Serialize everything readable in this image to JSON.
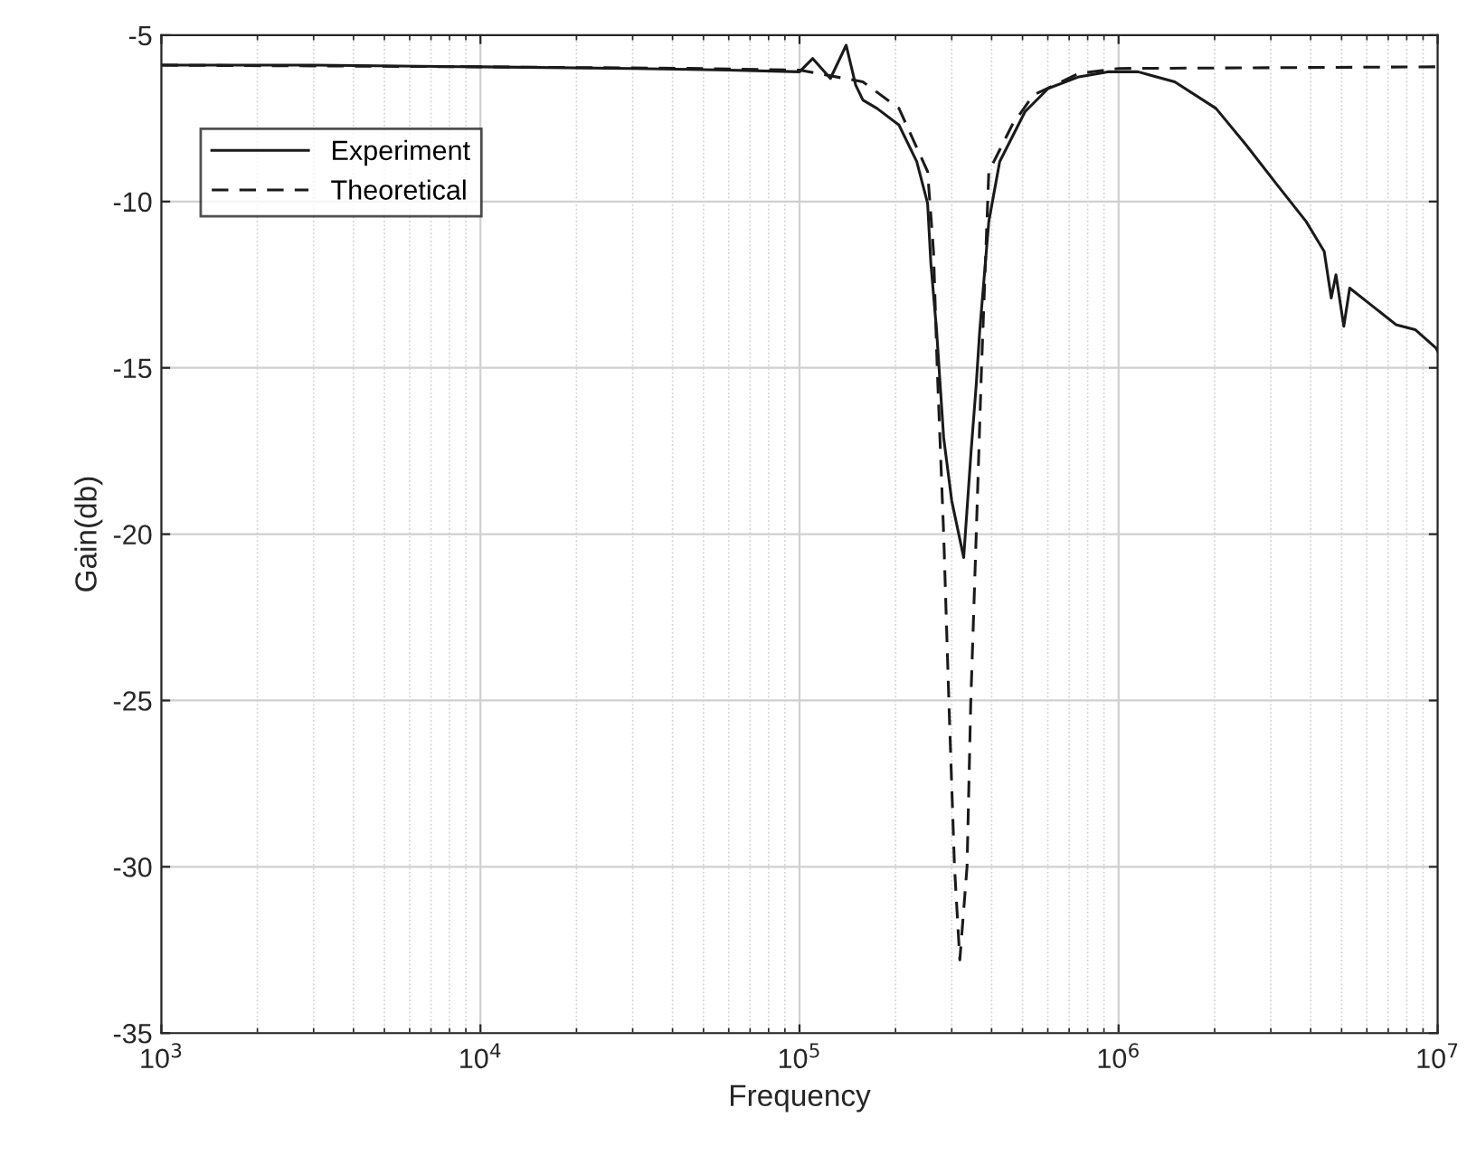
{
  "chart_data": {
    "type": "line",
    "xlabel": "Frequency",
    "ylabel": "Gain(db)",
    "log": "x",
    "grid": true,
    "legend": "top left",
    "xlim": [
      1000,
      10000000
    ],
    "ylim": [
      -35,
      -5
    ],
    "xticks": [
      {
        "value": 1000,
        "label": "10$^{3}$"
      },
      {
        "value": 10000,
        "label": "10$^{4}$"
      },
      {
        "value": 100000,
        "label": "10$^{5}$"
      },
      {
        "value": 1000000,
        "label": "10$^{6}$"
      },
      {
        "value": 10000000,
        "label": "10$^{7}$"
      }
    ],
    "yticks": [
      -35,
      -30,
      -25,
      -20,
      -15,
      -10,
      -5
    ],
    "series": [
      {
        "name": "Experiment",
        "color": "#1a1a1a",
        "line_style": "solid",
        "x": [
          1000,
          3000,
          10000,
          30000,
          60000,
          100000,
          110000,
          125000,
          140000,
          150000,
          158000,
          175000,
          205000,
          233000,
          252000,
          258000,
          269000,
          283000,
          300000,
          327000,
          345000,
          358000,
          367000,
          392000,
          424000,
          509000,
          602000,
          751000,
          925000,
          1010000,
          1150000,
          1500000,
          2020000,
          2510000,
          3140000,
          3870000,
          4410000,
          4640000,
          4800000,
          5080000,
          5300000,
          6260000,
          7400000,
          8500000,
          9870000,
          10000000
        ],
        "values": [
          -5.9,
          -5.9,
          -5.95,
          -6.0,
          -6.05,
          -6.1,
          -5.7,
          -6.3,
          -5.3,
          -6.5,
          -6.95,
          -7.2,
          -7.7,
          -8.8,
          -10.05,
          -11.85,
          -13.9,
          -17.1,
          -19.0,
          -20.7,
          -17.5,
          -15.5,
          -13.9,
          -10.6,
          -8.8,
          -7.3,
          -6.6,
          -6.25,
          -6.1,
          -6.1,
          -6.1,
          -6.4,
          -7.2,
          -8.3,
          -9.5,
          -10.6,
          -11.5,
          -12.9,
          -12.2,
          -13.75,
          -12.6,
          -13.15,
          -13.7,
          -13.85,
          -14.4,
          -14.5
        ]
      },
      {
        "name": "Theoretical",
        "color": "#1a1a1a",
        "line_style": "dashed",
        "x": [
          1000,
          10000,
          50000,
          100000,
          158000,
          205000,
          252000,
          263000,
          270000,
          283000,
          294000,
          306000,
          318000,
          335000,
          344000,
          358000,
          372000,
          392000,
          464000,
          540000,
          750000,
          1000000,
          10000000
        ],
        "values": [
          -5.9,
          -5.95,
          -6.0,
          -6.05,
          -6.4,
          -7.2,
          -9.1,
          -11.5,
          -14.95,
          -20.0,
          -25.1,
          -30.0,
          -32.8,
          -30.0,
          -25.1,
          -20.0,
          -14.95,
          -9.1,
          -7.7,
          -6.8,
          -6.15,
          -6.0,
          -5.95
        ]
      }
    ]
  }
}
